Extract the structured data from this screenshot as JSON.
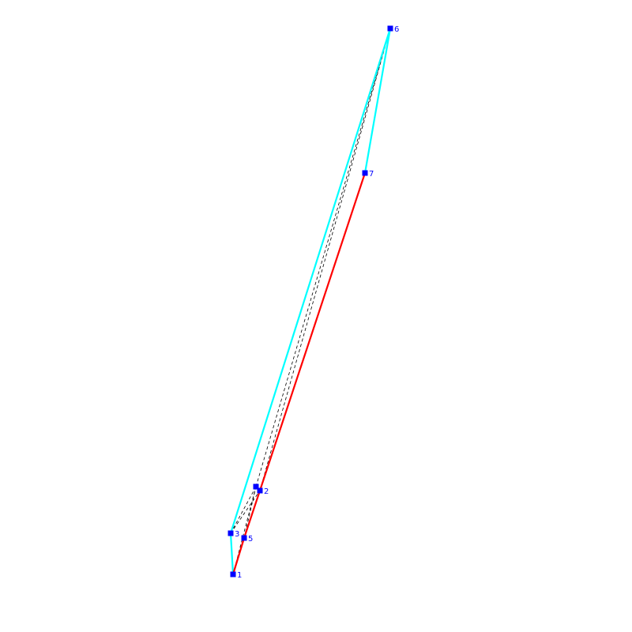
{
  "colors": {
    "background": "#ffffff",
    "vertex": "#0000ff",
    "red_path": "#ff0000",
    "cyan_path": "#00ffff",
    "dashed_edge": "#000000"
  },
  "vertices": [
    {
      "id": "v1",
      "label": "1"
    },
    {
      "id": "v2",
      "label": "2"
    },
    {
      "id": "v3",
      "label": "3"
    },
    {
      "id": "v4",
      "label": ""
    },
    {
      "id": "v5",
      "label": "5"
    },
    {
      "id": "v6",
      "label": "6"
    },
    {
      "id": "v7",
      "label": "7"
    }
  ],
  "red_path": [
    "v1",
    "v5",
    "v2",
    "v7"
  ],
  "cyan_path": [
    "v1",
    "v3",
    "v6",
    "v7"
  ],
  "dashed_edges": [
    [
      "v3",
      "v4"
    ],
    [
      "v3",
      "v2"
    ],
    [
      "v5",
      "v4"
    ],
    [
      "v5",
      "v2"
    ],
    [
      "v4",
      "v6"
    ],
    [
      "v2",
      "v6"
    ],
    [
      "v1",
      "v4"
    ]
  ]
}
